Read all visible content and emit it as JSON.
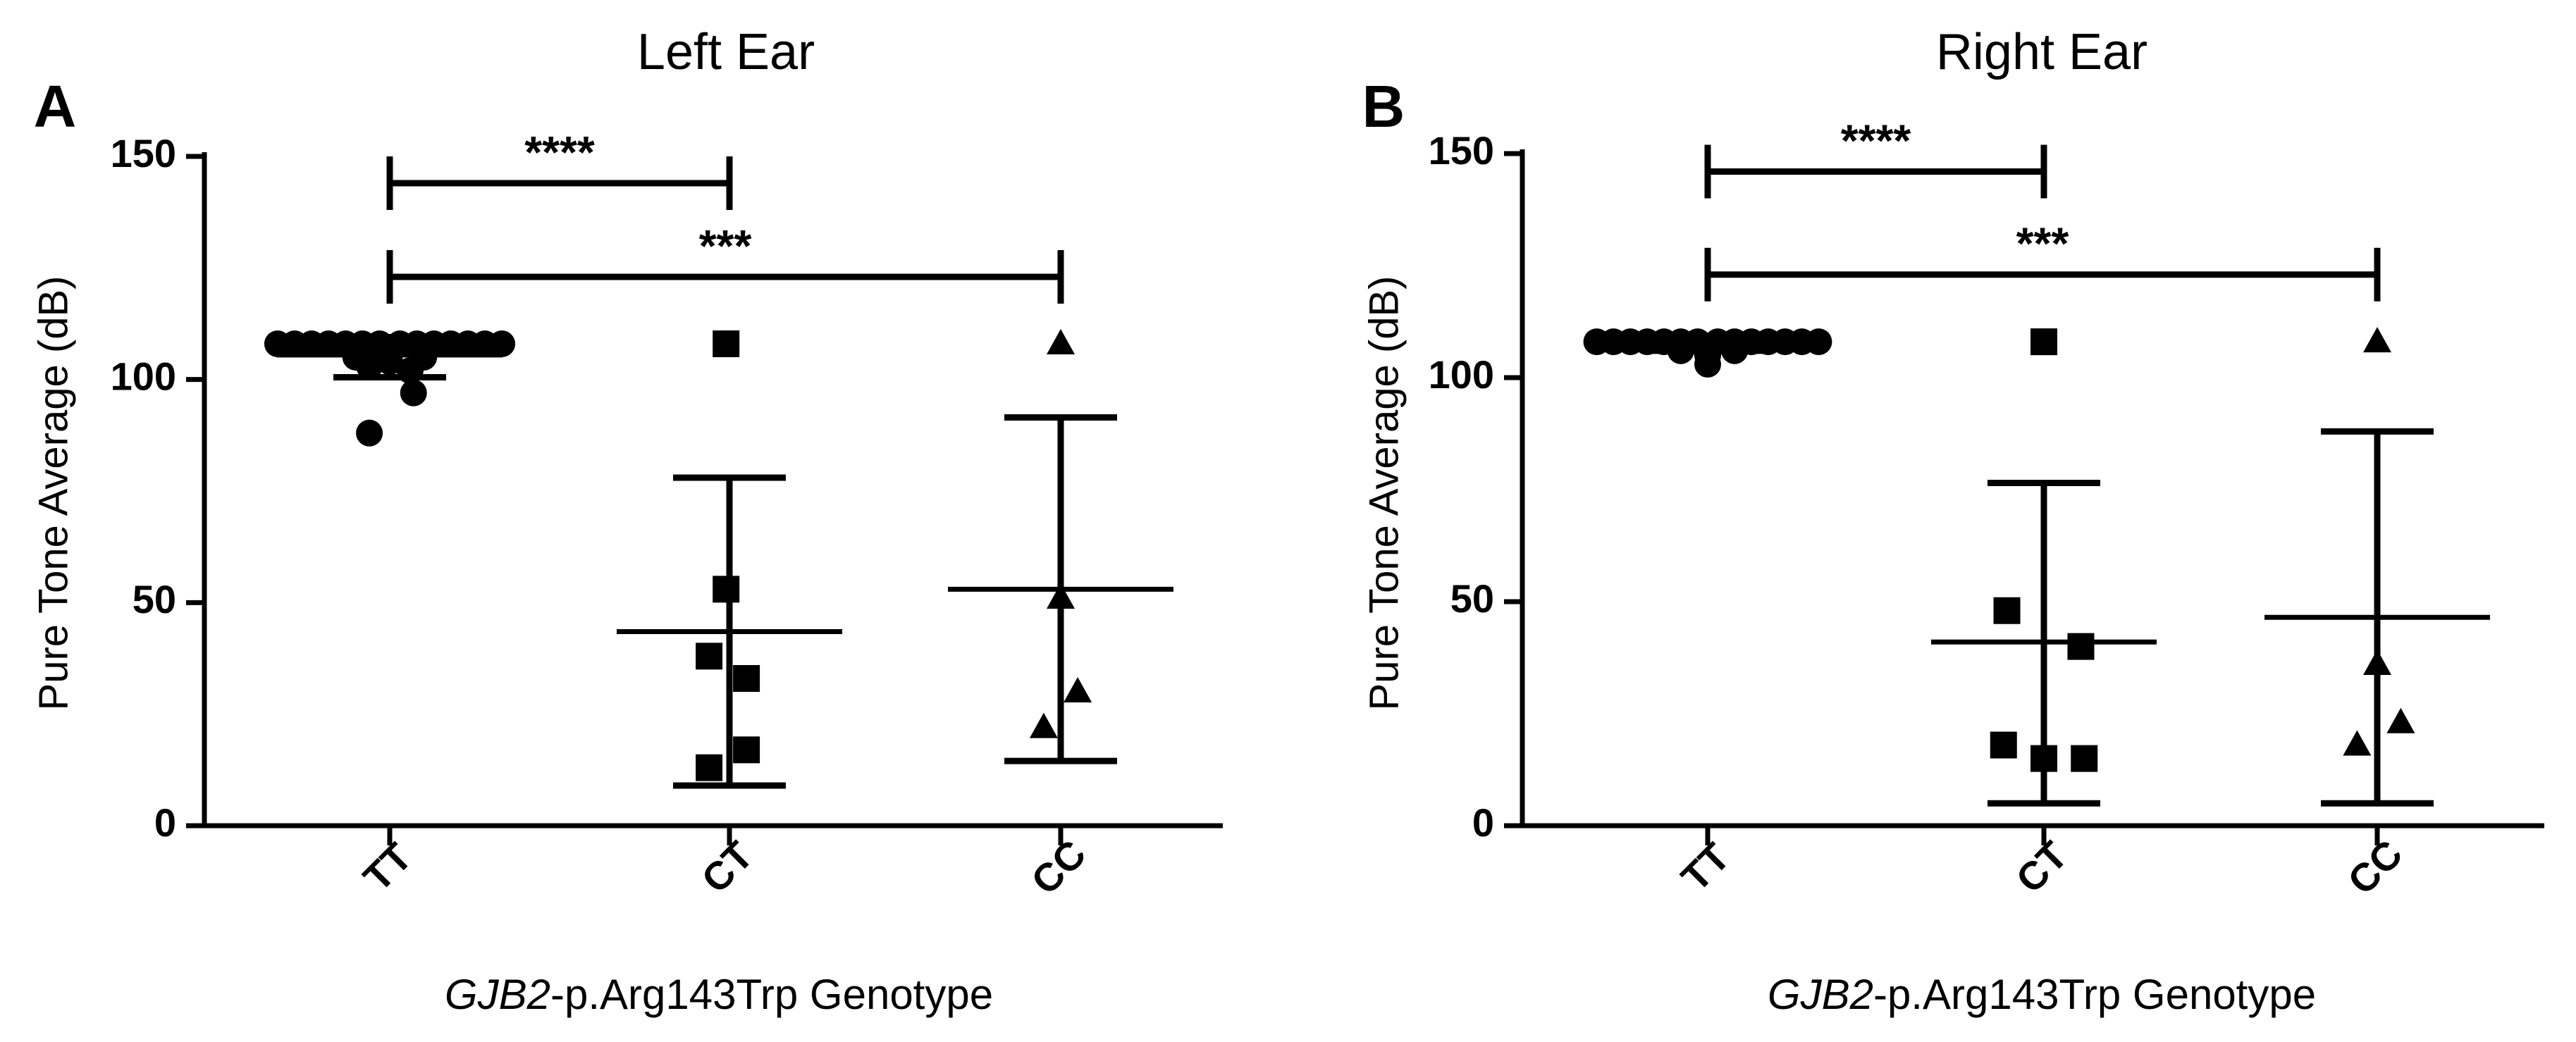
{
  "chart_data": [
    {
      "type": "scatter",
      "panel_label": "A",
      "title": "Left Ear",
      "ylabel": "Pure Tone Average (dB)",
      "xlabel_italic": "GJB2",
      "xlabel_rest": "-p.Arg143Trp Genotype",
      "ylim": [
        0,
        150
      ],
      "yticks": [
        "0",
        "50",
        "100",
        "150"
      ],
      "ytick_values": [
        0,
        50,
        100,
        150
      ],
      "categories": [
        "TT",
        "CT",
        "CC"
      ],
      "groups": [
        {
          "name": "TT",
          "marker": "circle",
          "points": [
            {
              "dx": -0.33,
              "y": 108
            },
            {
              "dx": -0.28,
              "y": 108
            },
            {
              "dx": -0.23,
              "y": 108
            },
            {
              "dx": -0.18,
              "y": 108
            },
            {
              "dx": -0.13,
              "y": 108
            },
            {
              "dx": -0.08,
              "y": 108
            },
            {
              "dx": -0.03,
              "y": 108
            },
            {
              "dx": 0.03,
              "y": 108
            },
            {
              "dx": 0.08,
              "y": 108
            },
            {
              "dx": 0.13,
              "y": 108
            },
            {
              "dx": 0.18,
              "y": 108
            },
            {
              "dx": 0.23,
              "y": 108
            },
            {
              "dx": 0.28,
              "y": 108
            },
            {
              "dx": 0.33,
              "y": 108
            },
            {
              "dx": -0.1,
              "y": 105
            },
            {
              "dx": 0.0,
              "y": 104
            },
            {
              "dx": 0.1,
              "y": 105
            },
            {
              "dx": -0.06,
              "y": 103
            },
            {
              "dx": 0.06,
              "y": 102
            },
            {
              "dx": 0.07,
              "y": 97
            },
            {
              "dx": -0.06,
              "y": 88
            }
          ],
          "mean": 105.5,
          "sd_low": 100.5,
          "sd_high": 109.5
        },
        {
          "name": "CT",
          "marker": "square",
          "points": [
            {
              "dx": -0.01,
              "y": 108
            },
            {
              "dx": -0.01,
              "y": 53
            },
            {
              "dx": -0.06,
              "y": 38
            },
            {
              "dx": 0.05,
              "y": 33
            },
            {
              "dx": 0.05,
              "y": 17
            },
            {
              "dx": -0.06,
              "y": 13
            }
          ],
          "mean": 43.5,
          "sd_low": 9,
          "sd_high": 78
        },
        {
          "name": "CC",
          "marker": "triangle",
          "points": [
            {
              "dx": 0.0,
              "y": 108
            },
            {
              "dx": 0.0,
              "y": 51
            },
            {
              "dx": 0.05,
              "y": 30
            },
            {
              "dx": -0.05,
              "y": 22
            }
          ],
          "mean": 53,
          "sd_low": 14.5,
          "sd_high": 91.5
        }
      ],
      "significance": [
        {
          "from": "TT",
          "to": "CT",
          "label": "****",
          "y": 144
        },
        {
          "from": "TT",
          "to": "CC",
          "label": "***",
          "y": 123
        }
      ]
    },
    {
      "type": "scatter",
      "panel_label": "B",
      "title": "Right Ear",
      "ylabel": "Pure Tone Average (dB)",
      "xlabel_italic": "GJB2",
      "xlabel_rest": "-p.Arg143Trp Genotype",
      "ylim": [
        0,
        150
      ],
      "yticks": [
        "0",
        "50",
        "100",
        "150"
      ],
      "ytick_values": [
        0,
        50,
        100,
        150
      ],
      "categories": [
        "TT",
        "CT",
        "CC"
      ],
      "groups": [
        {
          "name": "TT",
          "marker": "circle",
          "points": [
            {
              "dx": -0.33,
              "y": 108
            },
            {
              "dx": -0.28,
              "y": 108
            },
            {
              "dx": -0.23,
              "y": 108
            },
            {
              "dx": -0.18,
              "y": 108
            },
            {
              "dx": -0.13,
              "y": 108
            },
            {
              "dx": -0.08,
              "y": 108
            },
            {
              "dx": -0.03,
              "y": 108
            },
            {
              "dx": 0.03,
              "y": 108
            },
            {
              "dx": 0.08,
              "y": 108
            },
            {
              "dx": 0.13,
              "y": 108
            },
            {
              "dx": 0.18,
              "y": 108
            },
            {
              "dx": 0.23,
              "y": 108
            },
            {
              "dx": 0.28,
              "y": 108
            },
            {
              "dx": 0.33,
              "y": 108
            },
            {
              "dx": -0.08,
              "y": 106
            },
            {
              "dx": 0.0,
              "y": 105
            },
            {
              "dx": 0.08,
              "y": 106
            },
            {
              "dx": 0.0,
              "y": 103
            }
          ],
          "mean": 107.5,
          "sd_low": 106,
          "sd_high": 108.5
        },
        {
          "name": "CT",
          "marker": "square",
          "points": [
            {
              "dx": 0.0,
              "y": 108
            },
            {
              "dx": -0.11,
              "y": 48
            },
            {
              "dx": 0.11,
              "y": 40
            },
            {
              "dx": -0.12,
              "y": 18
            },
            {
              "dx": 0.0,
              "y": 15
            },
            {
              "dx": 0.12,
              "y": 15
            }
          ],
          "mean": 41,
          "sd_low": 5,
          "sd_high": 76.5
        },
        {
          "name": "CC",
          "marker": "triangle",
          "points": [
            {
              "dx": 0.0,
              "y": 108
            },
            {
              "dx": 0.0,
              "y": 36
            },
            {
              "dx": 0.07,
              "y": 23
            },
            {
              "dx": -0.06,
              "y": 18
            }
          ],
          "mean": 46.5,
          "sd_low": 5,
          "sd_high": 88
        }
      ],
      "significance": [
        {
          "from": "TT",
          "to": "CT",
          "label": "****",
          "y": 146
        },
        {
          "from": "TT",
          "to": "CC",
          "label": "***",
          "y": 123
        }
      ]
    }
  ]
}
